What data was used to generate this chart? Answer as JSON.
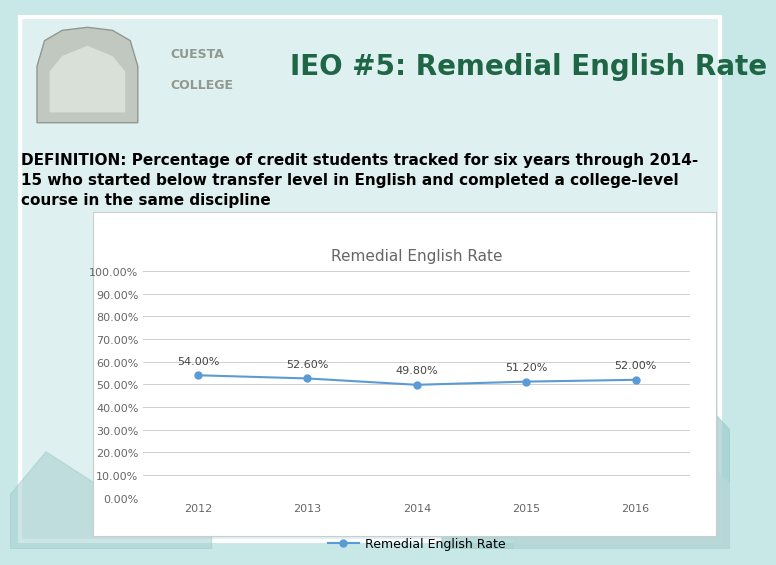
{
  "title": "IEO #5: Remedial English Rate",
  "definition_line1": "DEFINITION: Percentage of credit students tracked for six years through 2014-",
  "definition_line2": "15 who started below transfer level in English and completed a college-level",
  "definition_line3": "course in the same discipline",
  "chart_title": "Remedial English Rate",
  "legend_label": "Remedial English Rate",
  "x_labels": [
    "2012",
    "2013",
    "2014",
    "2015",
    "2016"
  ],
  "y_values": [
    54.0,
    52.6,
    49.8,
    51.2,
    52.0
  ],
  "y_ticks": [
    0,
    10,
    20,
    30,
    40,
    50,
    60,
    70,
    80,
    90,
    100
  ],
  "y_tick_labels": [
    "0.00%",
    "10.00%",
    "20.00%",
    "30.00%",
    "40.00%",
    "50.00%",
    "60.00%",
    "70.00%",
    "80.00%",
    "90.00%",
    "100.00%"
  ],
  "ylim": [
    0,
    100
  ],
  "data_labels": [
    "54.00%",
    "52.60%",
    "49.80%",
    "51.20%",
    "52.00%"
  ],
  "line_color": "#5b9bd5",
  "marker_color": "#5b9bd5",
  "bg_color": "#c8e8e8",
  "slide_bg": "#dff0f0",
  "chart_bg": "#ffffff",
  "title_color": "#1e6645",
  "grid_color": "#d0d0d0",
  "tick_color": "#666666",
  "title_fontsize": 20,
  "def_fontsize": 11,
  "chart_title_fontsize": 11,
  "tick_fontsize": 8,
  "data_label_fontsize": 8,
  "legend_fontsize": 9,
  "mountain1_x": [
    0.6,
    0.68,
    0.74,
    0.8,
    0.87,
    0.93,
    1.0,
    1.0,
    0.6
  ],
  "mountain1_y": [
    0.22,
    0.32,
    0.25,
    0.36,
    0.27,
    0.32,
    0.22,
    0.0,
    0.0
  ],
  "mountain1_color": "#a0cccc",
  "mountain2_x": [
    0.7,
    0.8,
    0.88,
    0.95,
    1.0,
    1.0,
    0.7
  ],
  "mountain2_y": [
    0.1,
    0.2,
    0.14,
    0.18,
    0.12,
    0.0,
    0.0
  ],
  "mountain2_color": "#b8d8d8"
}
